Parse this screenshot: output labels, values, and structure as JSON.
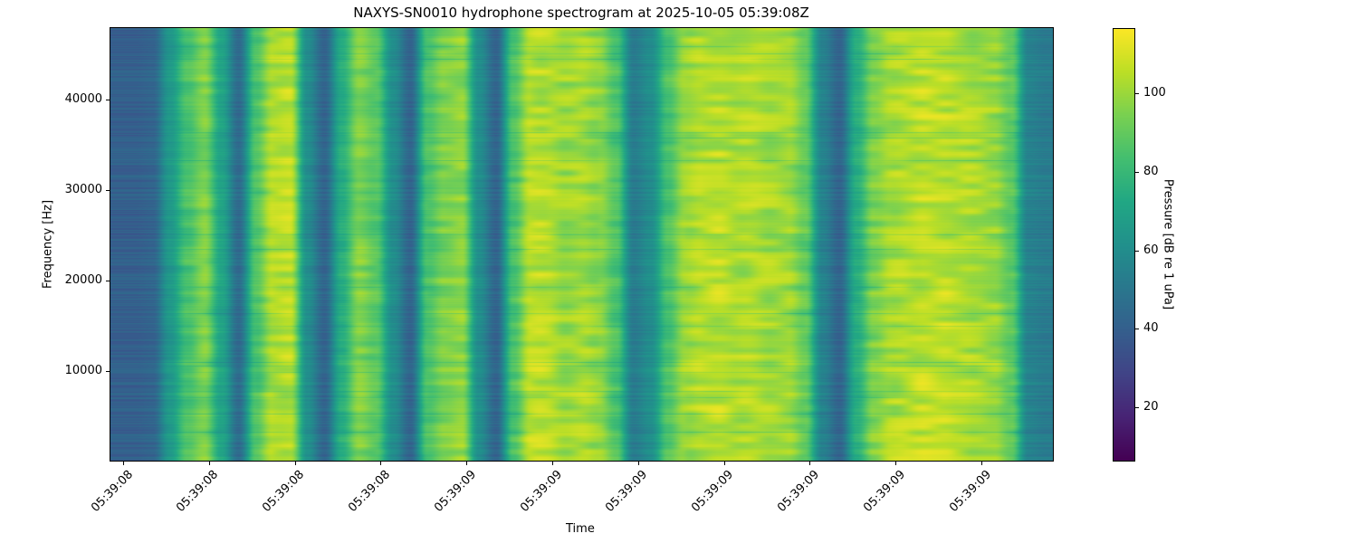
{
  "chart_data": {
    "type": "heatmap",
    "title": "NAXYS-SN0010 hydrophone spectrogram at 2025-10-05 05:39:08Z",
    "xlabel": "Time",
    "ylabel": "Frequency [Hz]",
    "x_tick_labels": [
      "05:39:08",
      "05:39:08",
      "05:39:08",
      "05:39:08",
      "05:39:09",
      "05:39:09",
      "05:39:09",
      "05:39:09",
      "05:39:09",
      "05:39:09",
      "05:39:09"
    ],
    "y_ticks": [
      10000,
      20000,
      30000,
      40000
    ],
    "ylim": [
      0,
      48000
    ],
    "colorbar": {
      "label": "Pressure [dB re 1 uPa]",
      "ticks": [
        20,
        40,
        60,
        80,
        100
      ],
      "range": [
        6.4,
        116.6
      ],
      "colormap": "viridis"
    },
    "mean_level_per_time_bin_db": [
      40,
      40,
      42,
      65,
      85,
      95,
      70,
      45,
      85,
      103,
      105,
      60,
      42,
      75,
      95,
      88,
      60,
      42,
      85,
      95,
      98,
      60,
      42,
      85,
      105,
      104,
      100,
      102,
      98,
      85,
      52,
      60,
      85,
      100,
      104,
      105,
      102,
      103,
      101,
      100,
      90,
      55,
      42,
      75,
      95,
      102,
      104,
      106,
      106,
      104,
      102,
      100,
      90,
      55,
      52
    ]
  }
}
